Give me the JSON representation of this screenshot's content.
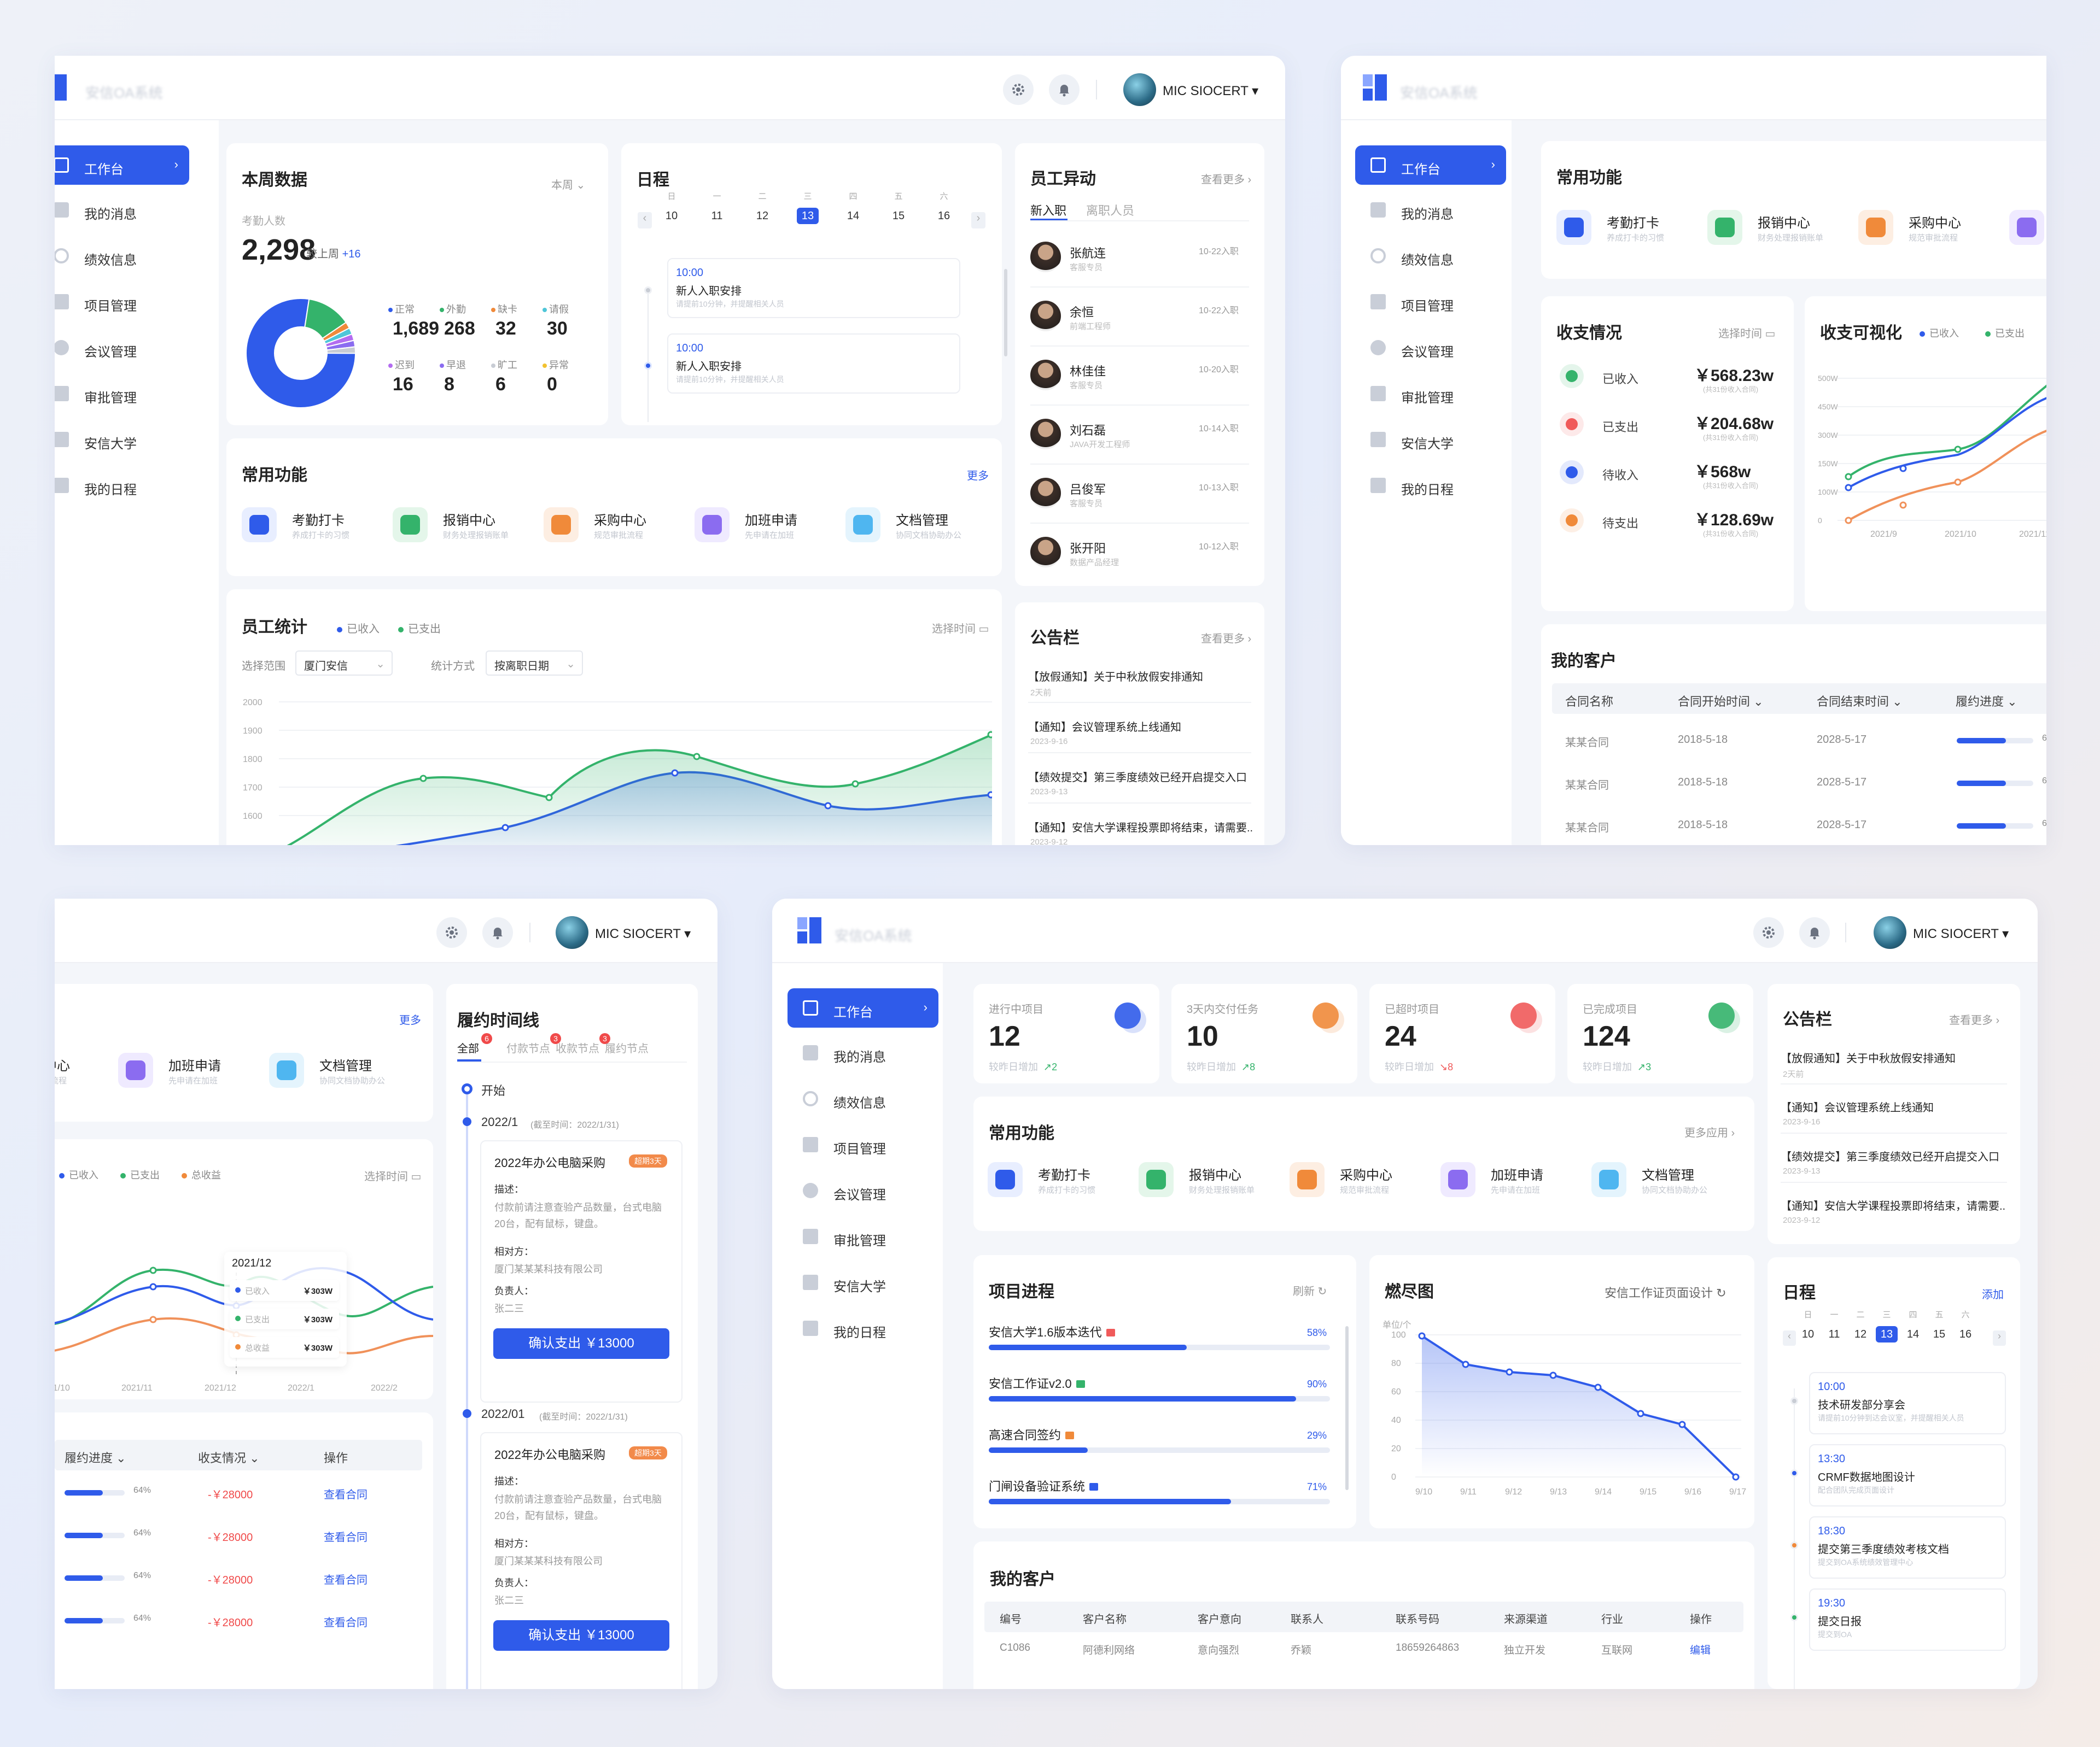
{
  "header": {
    "system_name": "安信OA系统",
    "user_name": "MIC SIOCERT"
  },
  "sidebar": {
    "items": [
      {
        "label": "工作台"
      },
      {
        "label": "我的消息"
      },
      {
        "label": "绩效信息"
      },
      {
        "label": "项目管理"
      },
      {
        "label": "会议管理"
      },
      {
        "label": "审批管理"
      },
      {
        "label": "安信大学"
      },
      {
        "label": "我的日程"
      }
    ]
  },
  "functions": [
    {
      "label": "考勤打卡",
      "desc": "养成打卡的习惯",
      "color": "#2f5bea",
      "bg": "#e8eeff"
    },
    {
      "label": "报销中心",
      "desc": "财务处理报销账单",
      "color": "#34b36b",
      "bg": "#e4f6ea"
    },
    {
      "label": "采购中心",
      "desc": "规范审批流程",
      "color": "#f08a3a",
      "bg": "#fdeee2"
    },
    {
      "label": "加班申请",
      "desc": "先申请在加班",
      "color": "#8b6cf0",
      "bg": "#efeaff"
    },
    {
      "label": "文档管理",
      "desc": "协同文档协助办公",
      "color": "#4fb6f0",
      "bg": "#e4f4fd"
    }
  ],
  "win1": {
    "weekly": {
      "title": "本周数据",
      "period": "本周",
      "attendance_label": "考勤人数",
      "attendance": "2,298",
      "compare_label": "较上周",
      "compare": "+16",
      "stats": [
        {
          "label": "正常",
          "value": "1,689",
          "color": "#2f5bea"
        },
        {
          "label": "外勤",
          "value": "268",
          "color": "#34b36b"
        },
        {
          "label": "缺卡",
          "value": "32",
          "color": "#f08a3a"
        },
        {
          "label": "请假",
          "value": "30",
          "color": "#4fc6d8"
        },
        {
          "label": "迟到",
          "value": "16",
          "color": "#b36cf0"
        },
        {
          "label": "早退",
          "value": "8",
          "color": "#8b6cf0"
        },
        {
          "label": "旷工",
          "value": "6",
          "color": "#c8ccd4"
        },
        {
          "label": "异常",
          "value": "0",
          "color": "#f2c230"
        }
      ]
    },
    "schedule": {
      "title": "日程",
      "weekdays": [
        "日",
        "一",
        "二",
        "三",
        "四",
        "五",
        "六"
      ],
      "days": [
        "10",
        "11",
        "12",
        "13",
        "14",
        "15",
        "16"
      ],
      "selected": "13",
      "events": [
        {
          "time": "10:00",
          "name": "新人入职安排",
          "desc": "请提前10分钟，并提醒相关人员"
        },
        {
          "time": "10:00",
          "name": "新人入职安排",
          "desc": "请提前10分钟，并提醒相关人员"
        }
      ]
    },
    "staff_change": {
      "title": "员工异动",
      "more": "查看更多",
      "tab_new": "新入职",
      "tab_leave": "离职人员",
      "people": [
        {
          "name": "张航连",
          "role": "客服专员",
          "date": "10-22入职"
        },
        {
          "name": "余恒",
          "role": "前端工程师",
          "date": "10-22入职"
        },
        {
          "name": "林佳佳",
          "role": "客服专员",
          "date": "10-20入职"
        },
        {
          "name": "刘石磊",
          "role": "JAVA开发工程师",
          "date": "10-14入职"
        },
        {
          "name": "吕俊军",
          "role": "客服专员",
          "date": "10-13入职"
        },
        {
          "name": "张开阳",
          "role": "数据产品经理",
          "date": "10-12入职"
        }
      ]
    },
    "functions_title": "常用功能",
    "functions_more": "更多",
    "staff_stats": {
      "title": "员工统计",
      "legend_in": "已收入",
      "legend_out": "已支出",
      "select_time": "选择时间",
      "range_label": "选择范围",
      "range_value": "厦门安信",
      "method_label": "统计方式",
      "method_value": "按离职日期",
      "yticks": [
        "2000",
        "1900",
        "1800",
        "1700",
        "1600"
      ]
    },
    "notice": {
      "title": "公告栏",
      "more": "查看更多",
      "items": [
        {
          "text": "【放假通知】关于中秋放假安排通知",
          "date": "2天前"
        },
        {
          "text": "【通知】会议管理系统上线通知",
          "date": "2023-9-16"
        },
        {
          "text": "【绩效提交】第三季度绩效已经开启提交入口",
          "date": "2023-9-13"
        },
        {
          "text": "【通知】安信大学课程投票即将结束，请需要...",
          "date": "2023-9-12"
        }
      ]
    }
  },
  "win2": {
    "functions_title": "常用功能",
    "income": {
      "title": "收支情况",
      "select_time": "选择时间",
      "items": [
        {
          "label": "已收入",
          "value": "￥568.23w",
          "sub": "(共31份收入合同)",
          "color": "#34b36b"
        },
        {
          "label": "已支出",
          "value": "￥204.68w",
          "sub": "(共31份收入合同)",
          "color": "#f05a5a"
        },
        {
          "label": "待收入",
          "value": "￥568w",
          "sub": "(共31份收入合同)",
          "color": "#2f5bea"
        },
        {
          "label": "待支出",
          "value": "￥128.69w",
          "sub": "(共31份收入合同)",
          "color": "#f08a3a"
        }
      ]
    },
    "visual": {
      "title": "收支可视化",
      "legend_in": "已收入",
      "legend_out": "已支出",
      "yticks": [
        "500W",
        "450W",
        "300W",
        "150W",
        "100W",
        "0"
      ],
      "xticks": [
        "2021/9",
        "2021/10",
        "2021/11"
      ]
    },
    "customers": {
      "title": "我的客户",
      "cols": [
        "合同名称",
        "合同开始时间",
        "合同结束时间",
        "履约进度"
      ],
      "rows": [
        {
          "name": "某某合同",
          "start": "2018-5-18",
          "end": "2028-5-17",
          "progress": "64%"
        },
        {
          "name": "某某合同",
          "start": "2018-5-18",
          "end": "2028-5-17",
          "progress": "64%"
        },
        {
          "name": "某某合同",
          "start": "2018-5-18",
          "end": "2028-5-17",
          "progress": "64%"
        },
        {
          "name": "某某合同",
          "start": "2018-5-18",
          "end": "2028-5-17",
          "progress": "64%"
        }
      ]
    }
  },
  "win3": {
    "more": "更多",
    "chart": {
      "legend": [
        "已收入",
        "已支出",
        "总收益"
      ],
      "select_time": "选择时间",
      "xticks": [
        "2021/10",
        "2021/11",
        "2021/12",
        "2022/1",
        "2022/2"
      ],
      "tooltip": {
        "title": "2021/12",
        "rows": [
          {
            "label": "已收入",
            "value": "￥303W"
          },
          {
            "label": "已支出",
            "value": "￥303W"
          },
          {
            "label": "总收益",
            "value": "￥303W"
          }
        ]
      }
    },
    "table": {
      "cols": [
        "履约进度",
        "收支情况",
        "操作"
      ],
      "rows": [
        {
          "progress": "64%",
          "amount": "-￥28000",
          "action": "查看合同"
        },
        {
          "progress": "64%",
          "amount": "-￥28000",
          "action": "查看合同"
        },
        {
          "progress": "64%",
          "amount": "-￥28000",
          "action": "查看合同"
        },
        {
          "progress": "64%",
          "amount": "-￥28000",
          "action": "查看合同"
        }
      ]
    },
    "timeline": {
      "title": "履约时间线",
      "tabs": [
        {
          "label": "全部",
          "badge": "6"
        },
        {
          "label": "付款节点",
          "badge": "3"
        },
        {
          "label": "收款节点",
          "badge": "3"
        },
        {
          "label": "履约节点",
          "badge": ""
        }
      ],
      "start": "开始",
      "nodes": [
        {
          "date": "2022/1",
          "deadline": "(截至时间：2022/1/31)",
          "title": "2022年办公电脑采购",
          "tag": "超期3天",
          "desc_label": "描述：",
          "desc": "付款前请注意查验产品数量，台式电脑20台，配有鼠标，键盘。",
          "party_label": "相对方：",
          "party": "厦门某某某科技有限公司",
          "owner_label": "负责人：",
          "owner": "张二三",
          "button": "确认支出 ￥13000"
        },
        {
          "date": "2022/01",
          "deadline": "(截至时间：2022/1/31)",
          "title": "2022年办公电脑采购",
          "tag": "超期3天",
          "desc_label": "描述：",
          "desc": "付款前请注意查验产品数量，台式电脑20台，配有鼠标，键盘。",
          "party_label": "相对方：",
          "party": "厦门某某某科技有限公司",
          "owner_label": "负责人：",
          "owner": "张二三",
          "button": "确认支出 ￥13000"
        }
      ]
    }
  },
  "win4": {
    "kpis": [
      {
        "label": "进行中项目",
        "value": "12",
        "sub": "较昨日增加",
        "delta": "2",
        "color": "#2f5bea",
        "up": true
      },
      {
        "label": "3天内交付任务",
        "value": "10",
        "sub": "较昨日增加",
        "delta": "8",
        "color": "#f08a3a",
        "up": true
      },
      {
        "label": "已超时项目",
        "value": "24",
        "sub": "较昨日增加",
        "delta": "8",
        "color": "#f05a5a",
        "up": false
      },
      {
        "label": "已完成项目",
        "value": "124",
        "sub": "较昨日增加",
        "delta": "3",
        "color": "#34b36b",
        "up": true
      }
    ],
    "notice": {
      "title": "公告栏",
      "more": "查看更多",
      "items": [
        {
          "text": "【放假通知】关于中秋放假安排通知",
          "date": "2天前"
        },
        {
          "text": "【通知】会议管理系统上线通知",
          "date": "2023-9-16"
        },
        {
          "text": "【绩效提交】第三季度绩效已经开启提交入口",
          "date": "2023-9-13"
        },
        {
          "text": "【通知】安信大学课程投票即将结束，请需要...",
          "date": "2023-9-12"
        }
      ]
    },
    "functions_title": "常用功能",
    "functions_more": "更多应用",
    "progress": {
      "title": "项目进程",
      "refresh": "刷新",
      "items": [
        {
          "name": "安信大学1.6版本迭代",
          "value": "58%",
          "frac": 0.58,
          "color": "#f05a5a"
        },
        {
          "name": "安信工作证v2.0",
          "value": "90%",
          "frac": 0.9,
          "color": "#34b36b"
        },
        {
          "name": "高速合同签约",
          "value": "29%",
          "frac": 0.29,
          "color": "#f08a3a"
        },
        {
          "name": "门闸设备验证系统",
          "value": "71%",
          "frac": 0.71,
          "color": "#2f5bea"
        }
      ]
    },
    "burndown": {
      "title": "燃尽图",
      "project": "安信工作证页面设计",
      "unit": "单位/个",
      "yticks": [
        "100",
        "80",
        "60",
        "40",
        "20",
        "0"
      ],
      "xticks": [
        "9/10",
        "9/11",
        "9/12",
        "9/13",
        "9/14",
        "9/15",
        "9/16",
        "9/17"
      ]
    },
    "schedule": {
      "title": "日程",
      "add": "添加",
      "weekdays": [
        "日",
        "一",
        "二",
        "三",
        "四",
        "五",
        "六"
      ],
      "days": [
        "10",
        "11",
        "12",
        "13",
        "14",
        "15",
        "16"
      ],
      "selected": "13",
      "events": [
        {
          "time": "10:00",
          "name": "技术研发部分享会",
          "desc": "请提前10分钟到达会议室，并提醒相关人员",
          "dot": "#c8ccd4"
        },
        {
          "time": "13:30",
          "name": "CRMF数据地图设计",
          "desc": "配合团队完成页面设计",
          "dot": "#2f5bea"
        },
        {
          "time": "18:30",
          "name": "提交第三季度绩效考核文档",
          "desc": "提交到OA系统绩效管理中心",
          "dot": "#f08a3a"
        },
        {
          "time": "19:30",
          "name": "提交日报",
          "desc": "提交到OA",
          "dot": "#34b36b"
        }
      ]
    },
    "customers": {
      "title": "我的客户",
      "cols": [
        "编号",
        "客户名称",
        "客户意向",
        "联系人",
        "联系号码",
        "来源渠道",
        "行业",
        "操作"
      ],
      "rows": [
        {
          "id": "C1086",
          "name": "阿德利网络",
          "intent": "意向强烈",
          "contact": "乔颖",
          "phone": "18659264863",
          "source": "独立开发",
          "industry": "互联网",
          "action": "编辑"
        }
      ]
    }
  }
}
